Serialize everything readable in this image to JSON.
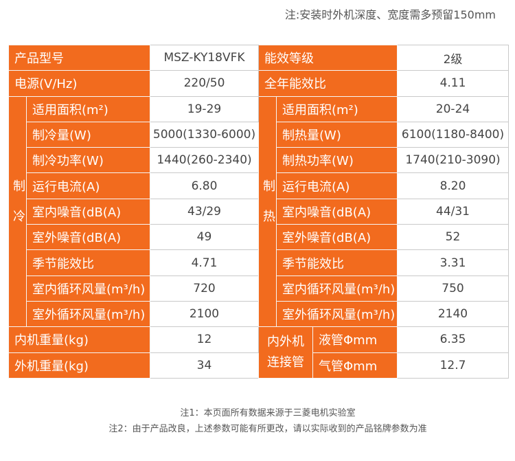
{
  "header": {
    "note": "注:安装时外机深度、宽度需多预留150mm"
  },
  "table": {
    "top_rows": [
      [
        "产品型号",
        "MSZ-KY18VFK",
        "能效等级",
        "2级"
      ],
      [
        "电源(V/Hz)",
        "220/50",
        "全年能效比",
        "4.11"
      ]
    ],
    "cooling": {
      "side": "制冷",
      "rows": [
        [
          "适用面积(m²)",
          "19-29"
        ],
        [
          "制冷量(W)",
          "5000(1330-6000)"
        ],
        [
          "制冷功率(W)",
          "1440(260-2340)"
        ],
        [
          "运行电流(A)",
          "6.80"
        ],
        [
          "室内噪音(dB(A)",
          "43/29"
        ],
        [
          "室外噪音(dB(A)",
          "49"
        ],
        [
          "季节能效比",
          "4.71"
        ],
        [
          "室内循环风量(m³/h)",
          "720"
        ],
        [
          "室外循环风量(m³/h)",
          "2100"
        ]
      ]
    },
    "heating": {
      "side": "制热",
      "rows": [
        [
          "适用面积(m²)",
          "20-24"
        ],
        [
          "制热量(W)",
          "6100(1180-8400)"
        ],
        [
          "制热功率(W)",
          "1740(210-3090)"
        ],
        [
          "运行电流(A)",
          "8.20"
        ],
        [
          "室内噪音(dB(A)",
          "44/31"
        ],
        [
          "室外噪音(dB(A)",
          "52"
        ],
        [
          "季节能效比",
          "3.31"
        ],
        [
          "室内循环风量(m³/h)",
          "750"
        ],
        [
          "室外循环风量(m³/h)",
          "2140"
        ]
      ]
    },
    "weights": [
      [
        "内机重量(kg)",
        "12"
      ],
      [
        "外机重量(kg)",
        "34"
      ]
    ],
    "pipe": {
      "label": "内外机连接管",
      "rows": [
        [
          "液管Φmm",
          "6.35"
        ],
        [
          "气管Φmm",
          "12.7"
        ]
      ]
    }
  },
  "footer": {
    "notes": [
      "注1：本页面所有数据来源于三菱电机实验室",
      "注2：由于产品改良，上述参数可能有所更改，请以实际收到的产品铭牌参数为准"
    ]
  }
}
